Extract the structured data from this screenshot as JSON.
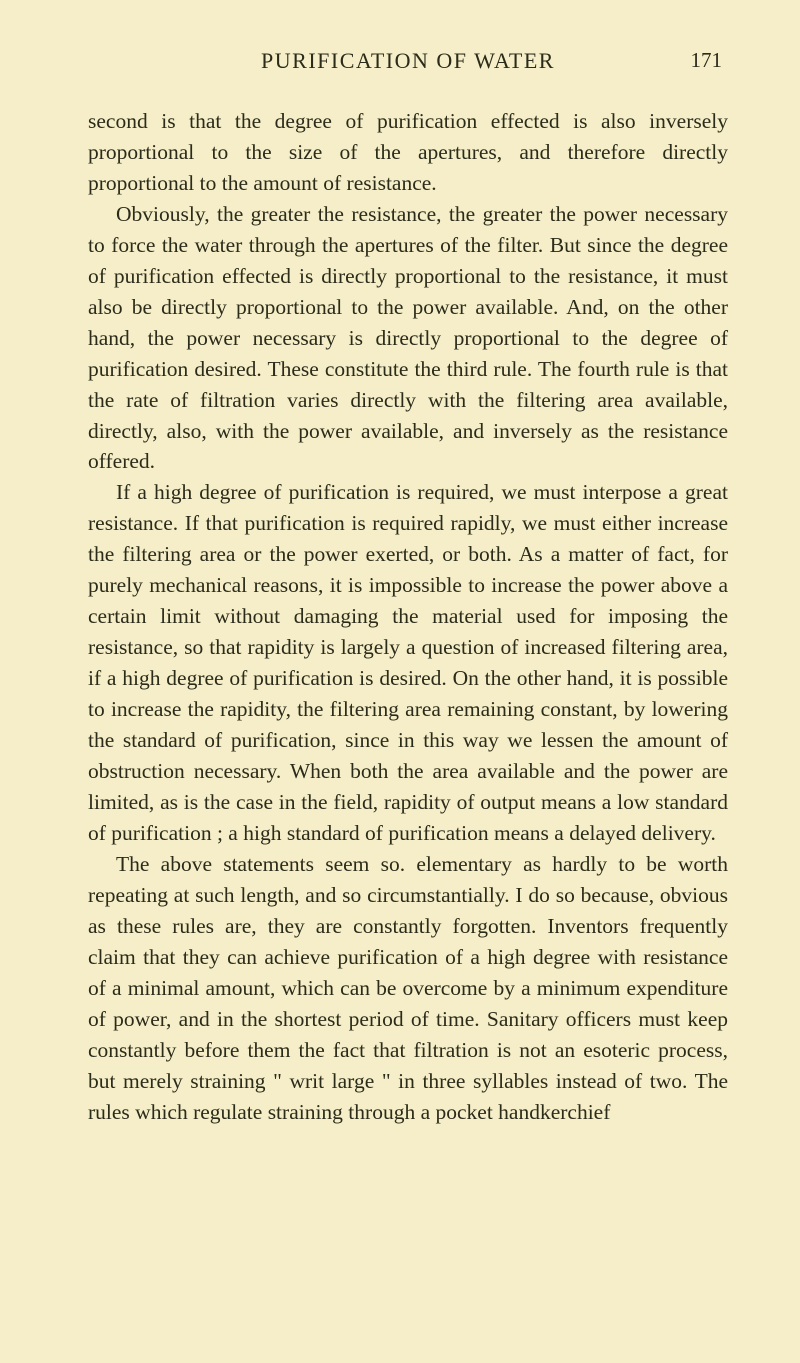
{
  "page": {
    "header_title": "PURIFICATION OF WATER",
    "page_number": "171",
    "paragraphs": [
      "second is that the degree of purification effected is also inversely proportional to the size of the apertures, and therefore directly proportional to the amount of resistance.",
      "Obviously, the greater the resistance, the greater the power necessary to force the water through the apertures of the filter. But since the degree of purification effected is directly proportional to the resistance, it must also be directly proportional to the power available. And, on the other hand, the power necessary is directly proportional to the degree of purification desired. These constitute the third rule. The fourth rule is that the rate of filtration varies directly with the filtering area available, directly, also, with the power available, and inversely as the resistance offered.",
      "If a high degree of purification is required, we must interpose a great resistance. If that purification is required rapidly, we must either increase the filtering area or the power exerted, or both. As a matter of fact, for purely mechanical reasons, it is impossible to increase the power above a certain limit without damaging the material used for imposing the resistance, so that rapidity is largely a question of increased filtering area, if a high degree of purification is desired. On the other hand, it is possible to increase the rapidity, the filtering area remaining constant, by lowering the standard of purification, since in this way we lessen the amount of obstruction necessary. When both the area available and the power are limited, as is the case in the field, rapidity of output means a low standard of purification ; a high standard of purification means a delayed delivery.",
      "The above statements seem so. elementary as hardly to be worth repeating at such length, and so circumstantially. I do so because, obvious as these rules are, they are constantly forgotten. Inventors frequently claim that they can achieve purification of a high degree with resistance of a minimal amount, which can be overcome by a minimum expenditure of power, and in the shortest period of time. Sanitary officers must keep constantly before them the fact that filtration is not an esoteric process, but merely straining \" writ large \" in three syllables instead of two. The rules which regulate straining through a pocket handkerchief"
    ]
  },
  "colors": {
    "background": "#f5eec8",
    "text": "#2b2b1a"
  },
  "typography": {
    "header_fontsize": 22,
    "body_fontsize": 21.5,
    "line_height": 1.44,
    "font_family": "Georgia, Times New Roman, serif"
  }
}
